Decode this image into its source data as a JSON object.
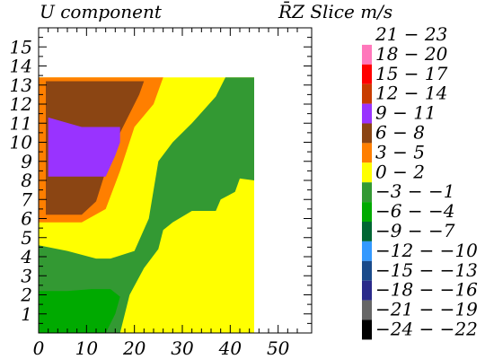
{
  "chart_data": {
    "type": "heatmap",
    "title_left": "U component",
    "title_right": "R̄Z Slice  m/s",
    "xlabel": "",
    "ylabel": "",
    "xlim": [
      0,
      57
    ],
    "ylim": [
      0,
      16
    ],
    "x_ticks": [
      "0",
      "10",
      "20",
      "30",
      "40",
      "50"
    ],
    "y_ticks": [
      "1",
      "2",
      "3",
      "4",
      "5",
      "6",
      "7",
      "8",
      "9",
      "10",
      "11",
      "12",
      "13",
      "14",
      "15"
    ],
    "legend": [
      {
        "label": "21 − 23",
        "color": "#ffffff"
      },
      {
        "label": "18 − 20",
        "color": "#ff77bb"
      },
      {
        "label": "15 − 17",
        "color": "#ff0000"
      },
      {
        "label": "12 − 14",
        "color": "#c83c00"
      },
      {
        "label": "9 − 11",
        "color": "#9933ff"
      },
      {
        "label": "6 − 8",
        "color": "#8b4513"
      },
      {
        "label": "3 − 5",
        "color": "#ff7f00"
      },
      {
        "label": "0 − 2",
        "color": "#ffff00"
      },
      {
        "label": "−3 − −1",
        "color": "#339933"
      },
      {
        "label": "−6 − −4",
        "color": "#00aa00"
      },
      {
        "label": "−9 − −7",
        "color": "#006633"
      },
      {
        "label": "−12 − −10",
        "color": "#3399ff"
      },
      {
        "label": "−15 − −13",
        "color": "#1a4a8a"
      },
      {
        "label": "−18 − −16",
        "color": "#2a2a8a"
      },
      {
        "label": "−21 − −19",
        "color": "#666666"
      },
      {
        "label": "−24 − −22",
        "color": "#000000"
      }
    ],
    "regions": [
      {
        "range": "0 − 2",
        "color": "#ffff00",
        "pts": [
          [
            0,
            0
          ],
          [
            45,
            0
          ],
          [
            45,
            13.4
          ],
          [
            0,
            13.4
          ]
        ]
      },
      {
        "range": "−3 − −1",
        "color": "#339933",
        "pts": [
          [
            0,
            4.6
          ],
          [
            6,
            4.3
          ],
          [
            12,
            3.9
          ],
          [
            15,
            3.9
          ],
          [
            20,
            4.3
          ],
          [
            23,
            6.0
          ],
          [
            24,
            7.5
          ],
          [
            25,
            9.0
          ],
          [
            28,
            10.0
          ],
          [
            32,
            11.0
          ],
          [
            37,
            12.4
          ],
          [
            39,
            13.4
          ],
          [
            45,
            13.4
          ],
          [
            45,
            8.0
          ],
          [
            42,
            8.1
          ],
          [
            41,
            7.4
          ],
          [
            38,
            7.0
          ],
          [
            37,
            6.4
          ],
          [
            32,
            6.4
          ],
          [
            28,
            5.8
          ],
          [
            26,
            5.4
          ],
          [
            25,
            4.4
          ],
          [
            22,
            3.4
          ],
          [
            19,
            2.0
          ],
          [
            17,
            0
          ],
          [
            0,
            0
          ]
        ]
      },
      {
        "range": "−6 − −4",
        "color": "#00aa00",
        "pts": [
          [
            0,
            2.2
          ],
          [
            6,
            2.2
          ],
          [
            11,
            2.3
          ],
          [
            15,
            2.3
          ],
          [
            17,
            1.9
          ],
          [
            16,
            1.0
          ],
          [
            14,
            0
          ],
          [
            0,
            0
          ]
        ]
      },
      {
        "range": "3 − 5",
        "color": "#ff7f00",
        "pts": [
          [
            0,
            5.8
          ],
          [
            9,
            5.8
          ],
          [
            14,
            6.5
          ],
          [
            17,
            8.5
          ],
          [
            20,
            10.8
          ],
          [
            24,
            12.0
          ],
          [
            26,
            13.4
          ],
          [
            0,
            13.4
          ]
        ]
      },
      {
        "range": "6 − 8",
        "color": "#8b4513",
        "pts": [
          [
            1.5,
            6.2
          ],
          [
            9,
            6.2
          ],
          [
            12,
            6.9
          ],
          [
            14,
            8.5
          ],
          [
            17,
            10.5
          ],
          [
            21,
            12.5
          ],
          [
            22,
            13.2
          ],
          [
            1.5,
            13.2
          ]
        ]
      },
      {
        "range": "9 − 11",
        "color": "#9933ff",
        "pts": [
          [
            2,
            8.2
          ],
          [
            14,
            8.2
          ],
          [
            16,
            9.3
          ],
          [
            17,
            10.0
          ],
          [
            17,
            10.8
          ],
          [
            9,
            10.8
          ],
          [
            2,
            11.3
          ]
        ]
      }
    ]
  }
}
